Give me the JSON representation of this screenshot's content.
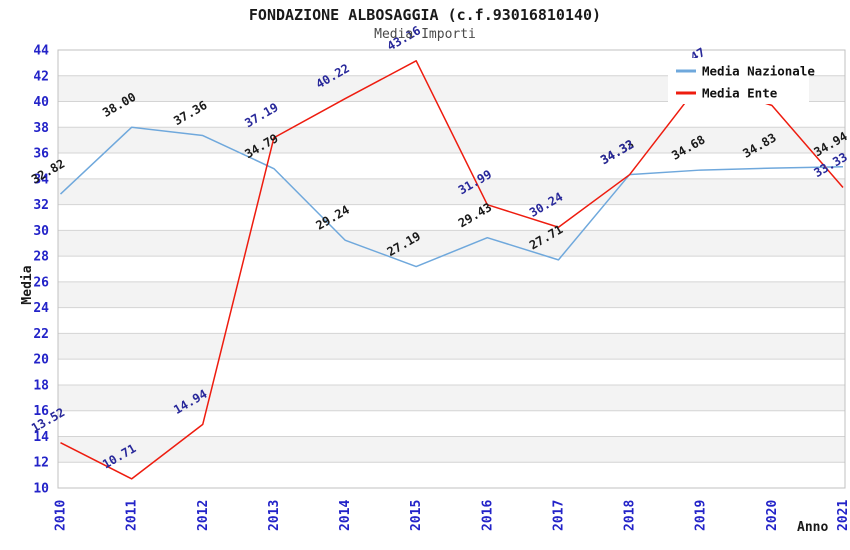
{
  "title": "FONDAZIONE ALBOSAGGIA (c.f.93016810140)",
  "subtitle": "Media Importi",
  "chart_data": {
    "type": "line",
    "x_categories": [
      "2010",
      "2011",
      "2012",
      "2013",
      "2014",
      "2015",
      "2016",
      "2017",
      "2018",
      "2019",
      "2020",
      "2021"
    ],
    "xlabel": "Anno",
    "ylabel": "Media",
    "ylim": [
      10,
      44
    ],
    "ytick_step": 2,
    "grid": "horizontal gridlines with alternating gray bands",
    "legend_position": "top-right",
    "series": [
      {
        "name": "Media Nazionale",
        "color": "#6fa8dc",
        "label_color": "#1a1a1a",
        "values": [
          32.82,
          38.0,
          37.36,
          34.79,
          29.24,
          27.19,
          29.43,
          27.71,
          34.33,
          34.68,
          34.83,
          34.94
        ],
        "labels": [
          "32.82",
          "38.00",
          "37.36",
          "34.79",
          "29.24",
          "27.19",
          "29.43",
          "27.71",
          "34.33",
          "34.68",
          "34.83",
          "34.94"
        ]
      },
      {
        "name": "Media Ente",
        "color": "#ee1c0f",
        "label_color": "#28289a",
        "values": [
          13.52,
          10.71,
          14.94,
          37.19,
          40.22,
          43.16,
          31.99,
          30.24,
          34.32,
          41.47,
          39.7,
          33.33
        ],
        "labels": [
          "13.52",
          "10.71",
          "14.94",
          "37.19",
          "40.22",
          "43.16",
          "31.99",
          "30.24",
          "34.32",
          "41.47",
          "",
          "33.33"
        ]
      }
    ]
  },
  "colors": {
    "tick_label": "#2323c8",
    "axis_title": "#1a1a1a",
    "gridline": "#d4d4d4",
    "plot_border": "#c0c0c0",
    "band_gray": "#f3f3f3",
    "band_white": "#ffffff",
    "legend_bg": "#ffffff",
    "legend_text": "#111111"
  }
}
